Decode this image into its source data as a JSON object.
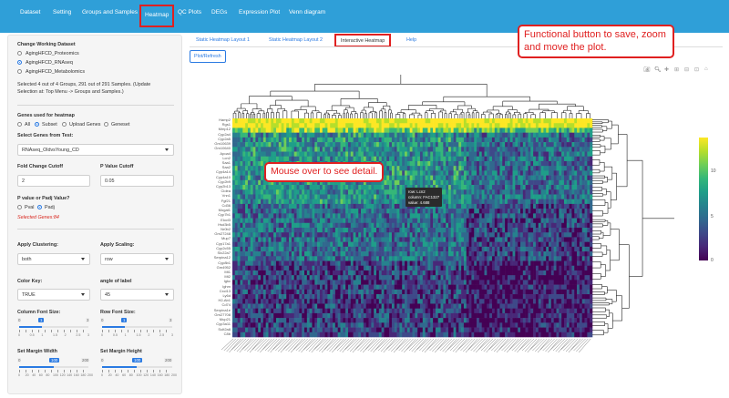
{
  "nav": {
    "items": [
      "Dataset",
      "Setting",
      "Groups and Samples",
      "Heatmap",
      "QC Plots",
      "DEGs",
      "Expression Plot",
      "Venn diagram"
    ],
    "active": "Heatmap"
  },
  "sidebar": {
    "working_dataset_title": "Change Working Dataset",
    "datasets": [
      "AgingHFCD_Proteomics",
      "AgingHFCD_RNAseq",
      "AgingHFCD_Metabolomics"
    ],
    "datasets_selected": "AgingHFCD_RNAseq",
    "selection_note_1": "Selected 4 out of 4 Groups, 291 out of 291 Samples. (Update",
    "selection_note_2": "Selection at: Top Menu -> Groups and Samples.)",
    "genes_title": "Genes used for heatmap",
    "gene_options": [
      "All",
      "Subset",
      "Upload Genes",
      "Geneset"
    ],
    "gene_selected": "Subset",
    "test_label": "Select Genes from Test:",
    "test_value": "RNAseq_OldvsYoung_CD",
    "fc_label": "Fold Change Cutoff",
    "fc_value": "2",
    "pv_label": "P Value Cutoff",
    "pv_value": "0.05",
    "padj_label": "P value or Padj Value?",
    "padj_options": [
      "Pval",
      "Padj"
    ],
    "padj_selected": "Padj",
    "selected_genes": "Selected Genes:84",
    "clustering_label": "Apply Clustering:",
    "clustering_value": "both",
    "scaling_label": "Apply Scaling:",
    "scaling_value": "row",
    "colorkey_label": "Color Key:",
    "colorkey_value": "TRUE",
    "angle_label": "angle of label",
    "angle_value": "45",
    "col_font_label": "Column Font Size:",
    "col_font": {
      "min": "0",
      "max": "3",
      "value": "1",
      "ticks": [
        "0",
        "0.5",
        "1",
        "1.5",
        "2",
        "2.5",
        "3"
      ]
    },
    "row_font_label": "Row Font Size:",
    "row_font": {
      "min": "0",
      "max": "3",
      "value": "1",
      "ticks": [
        "0",
        "0.5",
        "1",
        "1.5",
        "2",
        "2.5",
        "3"
      ]
    },
    "margin_w_label": "Set Margin Width",
    "margin_w": {
      "min": "0",
      "max": "200",
      "value": "100",
      "ticks": [
        "0",
        "20",
        "40",
        "60",
        "80",
        "100",
        "120",
        "140",
        "160",
        "180",
        "200"
      ]
    },
    "margin_h_label": "Set Margin Height",
    "margin_h": {
      "min": "0",
      "max": "200",
      "value": "100",
      "ticks": [
        "0",
        "20",
        "40",
        "60",
        "80",
        "100",
        "120",
        "140",
        "160",
        "180",
        "200"
      ]
    }
  },
  "tabs": [
    "Static Heatmap Layout 1",
    "Static Heatmap Layout 2",
    "Interactive Heatmap",
    "Help"
  ],
  "active_tab": "Interactive Heatmap",
  "plot_button": "Plot/Refresh",
  "callouts": {
    "functional": "Functional button to save, zoom and move the plot.",
    "mouse": "Mouse over to see detail."
  },
  "tooltip": {
    "row": "row: Lcn2",
    "column": "column: FAC1327",
    "value": "value: 4.688"
  },
  "heatmap": {
    "gene_labels": [
      "Hamp2",
      "Rgs1",
      "Mmp12",
      "Cyp2a4",
      "Cyp2a5",
      "Gm10639",
      "Gm10640",
      "Apoa4",
      "Lcn2",
      "Saa1",
      "Saa2",
      "Cyp4a14",
      "Cyp4a10",
      "Cyp2b9",
      "Cyp2b13",
      "Cidea",
      "Vnn1",
      "Fgf21",
      "Cd36",
      "Mogat1",
      "Cyp7b1",
      "Elovl3",
      "Hsd3b5",
      "Nr0b2",
      "Gm27248",
      "Mup7",
      "Cyp17a1",
      "Cyp2c55",
      "Slc22a7",
      "Serpina12",
      "Cyp8b1",
      "Gm4952",
      "Mt1",
      "Mt2",
      "Igkc",
      "Ighm",
      "Cxcl13",
      "Ly6d",
      "H2-Ab1",
      "Cd74",
      "Serpina1e",
      "Gm27708",
      "Mup21",
      "Cyp3a11",
      "Sult2a8",
      "C8b"
    ],
    "colorbar_ticks": [
      "10",
      "5",
      "0"
    ],
    "colors": [
      "#440154",
      "#482878",
      "#3e4989",
      "#31688e",
      "#26828e",
      "#1f9e89",
      "#35b779",
      "#6ece58",
      "#b5de2b",
      "#fde725"
    ]
  },
  "colors": {
    "navbar": "#2f9fd8",
    "accent": "#2a7ae2",
    "highlight": "#e02020"
  }
}
